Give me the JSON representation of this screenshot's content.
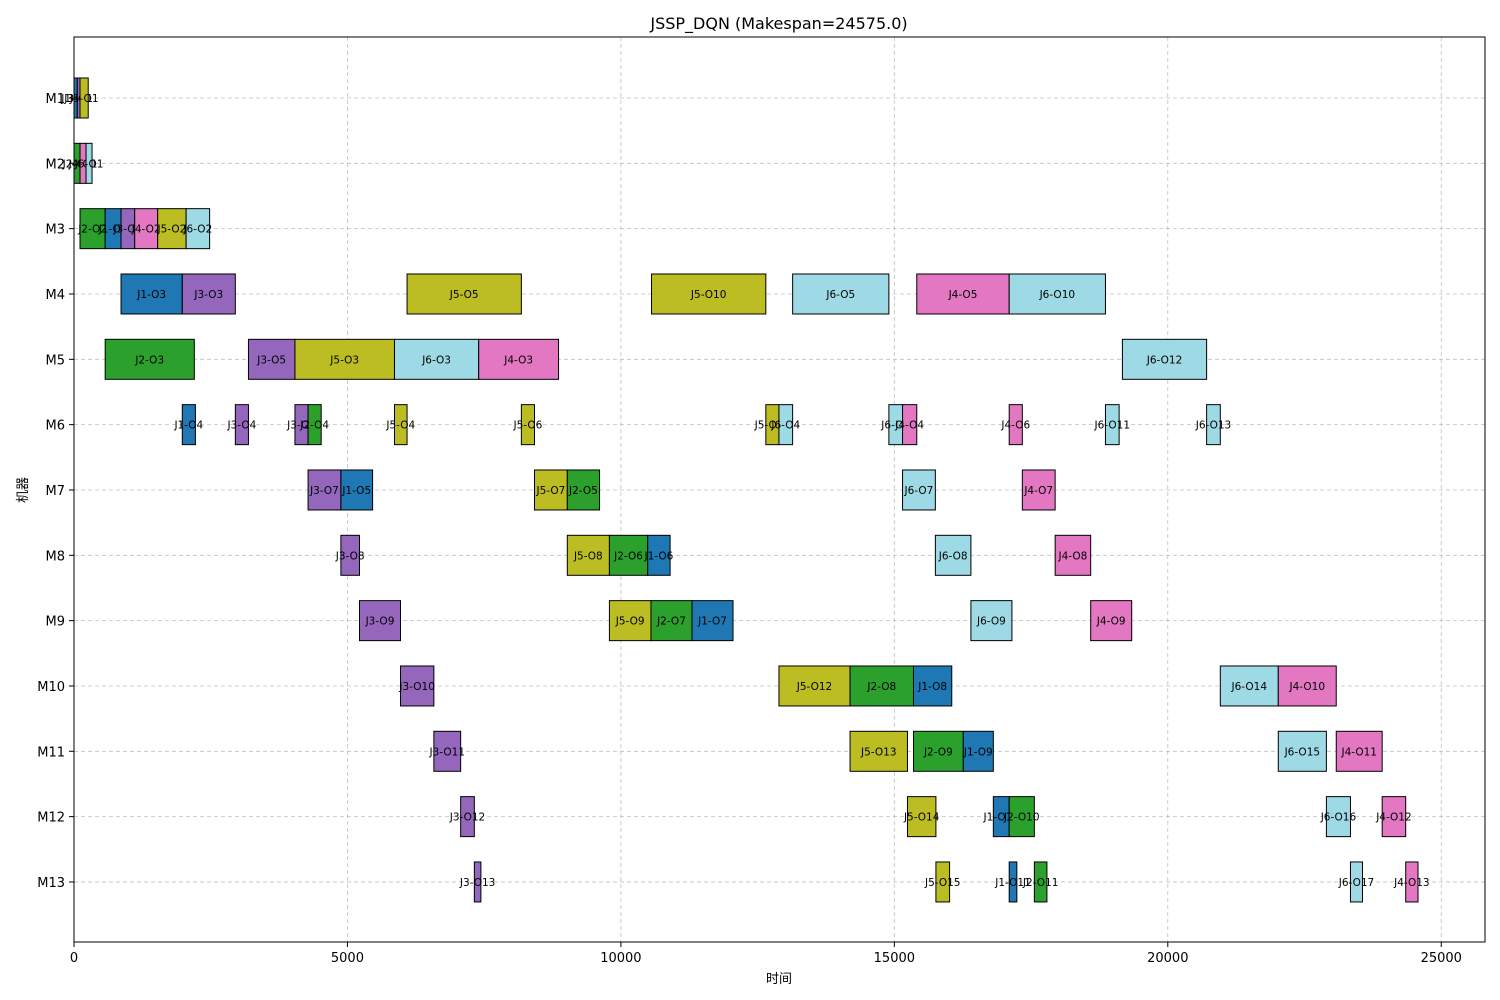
{
  "chart_data": {
    "type": "gantt",
    "title": "JSSP_DQN (Makespan=24575.0)",
    "xlabel": "时间",
    "ylabel": "机器",
    "xlim": [
      0,
      25800
    ],
    "xticks": [
      0,
      5000,
      10000,
      15000,
      20000,
      25000
    ],
    "grid": true,
    "machines": [
      "M1",
      "M2",
      "M3",
      "M4",
      "M5",
      "M6",
      "M7",
      "M8",
      "M9",
      "M10",
      "M11",
      "M12",
      "M13"
    ],
    "colors": {
      "J1": "#1f77b4",
      "J2": "#2ca02c",
      "J3": "#9467bd",
      "J4": "#e377c2",
      "J5": "#bcbd22",
      "J6": "#9edae5"
    },
    "tasks": [
      {
        "label": "J1-O1",
        "job": "J1",
        "machine": "M1",
        "start": 0,
        "end": 60
      },
      {
        "label": "J3-O1",
        "job": "J3",
        "machine": "M1",
        "start": 60,
        "end": 110
      },
      {
        "label": "J5-O1",
        "job": "J5",
        "machine": "M1",
        "start": 110,
        "end": 260
      },
      {
        "label": "J2-O1",
        "job": "J2",
        "machine": "M2",
        "start": 0,
        "end": 110
      },
      {
        "label": "J4-O1",
        "job": "J4",
        "machine": "M2",
        "start": 110,
        "end": 220
      },
      {
        "label": "J6-O1",
        "job": "J6",
        "machine": "M2",
        "start": 220,
        "end": 330
      },
      {
        "label": "J2-O2",
        "job": "J2",
        "machine": "M3",
        "start": 110,
        "end": 570
      },
      {
        "label": "J1-O2",
        "job": "J1",
        "machine": "M3",
        "start": 570,
        "end": 860
      },
      {
        "label": "J3-O2",
        "job": "J3",
        "machine": "M3",
        "start": 860,
        "end": 1110
      },
      {
        "label": "J4-O2",
        "job": "J4",
        "machine": "M3",
        "start": 1110,
        "end": 1530
      },
      {
        "label": "J5-O2",
        "job": "J5",
        "machine": "M3",
        "start": 1530,
        "end": 2050
      },
      {
        "label": "J6-O2",
        "job": "J6",
        "machine": "M3",
        "start": 2050,
        "end": 2480
      },
      {
        "label": "J1-O3",
        "job": "J1",
        "machine": "M4",
        "start": 860,
        "end": 1980
      },
      {
        "label": "J3-O3",
        "job": "J3",
        "machine": "M4",
        "start": 1980,
        "end": 2950
      },
      {
        "label": "J5-O5",
        "job": "J5",
        "machine": "M4",
        "start": 6090,
        "end": 8180
      },
      {
        "label": "J5-O10",
        "job": "J5",
        "machine": "M4",
        "start": 10560,
        "end": 12650
      },
      {
        "label": "J6-O5",
        "job": "J6",
        "machine": "M4",
        "start": 13140,
        "end": 14900
      },
      {
        "label": "J4-O5",
        "job": "J4",
        "machine": "M4",
        "start": 15410,
        "end": 17100
      },
      {
        "label": "J6-O10",
        "job": "J6",
        "machine": "M4",
        "start": 17100,
        "end": 18860
      },
      {
        "label": "J2-O3",
        "job": "J2",
        "machine": "M5",
        "start": 570,
        "end": 2200
      },
      {
        "label": "J3-O5",
        "job": "J3",
        "machine": "M5",
        "start": 3190,
        "end": 4040
      },
      {
        "label": "J5-O3",
        "job": "J5",
        "machine": "M5",
        "start": 4040,
        "end": 5860
      },
      {
        "label": "J6-O3",
        "job": "J6",
        "machine": "M5",
        "start": 5860,
        "end": 7400
      },
      {
        "label": "J4-O3",
        "job": "J4",
        "machine": "M5",
        "start": 7400,
        "end": 8860
      },
      {
        "label": "J6-O12",
        "job": "J6",
        "machine": "M5",
        "start": 19170,
        "end": 20710
      },
      {
        "label": "J1-O4",
        "job": "J1",
        "machine": "M6",
        "start": 1980,
        "end": 2220
      },
      {
        "label": "J3-O4",
        "job": "J3",
        "machine": "M6",
        "start": 2950,
        "end": 3190
      },
      {
        "label": "J3-O6",
        "job": "J3",
        "machine": "M6",
        "start": 4040,
        "end": 4280
      },
      {
        "label": "J2-O4",
        "job": "J2",
        "machine": "M6",
        "start": 4280,
        "end": 4520
      },
      {
        "label": "J5-O4",
        "job": "J5",
        "machine": "M6",
        "start": 5860,
        "end": 6090
      },
      {
        "label": "J5-O6",
        "job": "J5",
        "machine": "M6",
        "start": 8180,
        "end": 8420
      },
      {
        "label": "J5-O11",
        "job": "J5",
        "machine": "M6",
        "start": 12650,
        "end": 12890
      },
      {
        "label": "J6-O4",
        "job": "J6",
        "machine": "M6",
        "start": 12890,
        "end": 13140
      },
      {
        "label": "J6-O6",
        "job": "J6",
        "machine": "M6",
        "start": 14900,
        "end": 15150
      },
      {
        "label": "J4-O4",
        "job": "J4",
        "machine": "M6",
        "start": 15150,
        "end": 15410
      },
      {
        "label": "J4-O6",
        "job": "J4",
        "machine": "M6",
        "start": 17100,
        "end": 17340
      },
      {
        "label": "J6-O11",
        "job": "J6",
        "machine": "M6",
        "start": 18860,
        "end": 19110
      },
      {
        "label": "J6-O13",
        "job": "J6",
        "machine": "M6",
        "start": 20710,
        "end": 20960
      },
      {
        "label": "J3-O7",
        "job": "J3",
        "machine": "M7",
        "start": 4280,
        "end": 4880
      },
      {
        "label": "J1-O5",
        "job": "J1",
        "machine": "M7",
        "start": 4880,
        "end": 5460
      },
      {
        "label": "J5-O7",
        "job": "J5",
        "machine": "M7",
        "start": 8420,
        "end": 9020
      },
      {
        "label": "J2-O5",
        "job": "J2",
        "machine": "M7",
        "start": 9020,
        "end": 9610
      },
      {
        "label": "J6-O7",
        "job": "J6",
        "machine": "M7",
        "start": 15150,
        "end": 15750
      },
      {
        "label": "J4-O7",
        "job": "J4",
        "machine": "M7",
        "start": 17340,
        "end": 17940
      },
      {
        "label": "J3-O8",
        "job": "J3",
        "machine": "M8",
        "start": 4880,
        "end": 5220
      },
      {
        "label": "J5-O8",
        "job": "J5",
        "machine": "M8",
        "start": 9020,
        "end": 9790
      },
      {
        "label": "J2-O6",
        "job": "J2",
        "machine": "M8",
        "start": 9790,
        "end": 10490
      },
      {
        "label": "J1-O6",
        "job": "J1",
        "machine": "M8",
        "start": 10490,
        "end": 10900
      },
      {
        "label": "J6-O8",
        "job": "J6",
        "machine": "M8",
        "start": 15750,
        "end": 16400
      },
      {
        "label": "J4-O8",
        "job": "J4",
        "machine": "M8",
        "start": 17940,
        "end": 18590
      },
      {
        "label": "J3-O9",
        "job": "J3",
        "machine": "M9",
        "start": 5220,
        "end": 5970
      },
      {
        "label": "J5-O9",
        "job": "J5",
        "machine": "M9",
        "start": 9790,
        "end": 10550
      },
      {
        "label": "J2-O7",
        "job": "J2",
        "machine": "M9",
        "start": 10550,
        "end": 11300
      },
      {
        "label": "J1-O7",
        "job": "J1",
        "machine": "M9",
        "start": 11300,
        "end": 12050
      },
      {
        "label": "J6-O9",
        "job": "J6",
        "machine": "M9",
        "start": 16400,
        "end": 17150
      },
      {
        "label": "J4-O9",
        "job": "J4",
        "machine": "M9",
        "start": 18590,
        "end": 19340
      },
      {
        "label": "J3-O10",
        "job": "J3",
        "machine": "M10",
        "start": 5970,
        "end": 6580
      },
      {
        "label": "J5-O12",
        "job": "J5",
        "machine": "M10",
        "start": 12890,
        "end": 14190
      },
      {
        "label": "J2-O8",
        "job": "J2",
        "machine": "M10",
        "start": 14190,
        "end": 15350
      },
      {
        "label": "J1-O8",
        "job": "J1",
        "machine": "M10",
        "start": 15350,
        "end": 16050
      },
      {
        "label": "J6-O14",
        "job": "J6",
        "machine": "M10",
        "start": 20960,
        "end": 22020
      },
      {
        "label": "J4-O10",
        "job": "J4",
        "machine": "M10",
        "start": 22020,
        "end": 23080
      },
      {
        "label": "J3-O11",
        "job": "J3",
        "machine": "M11",
        "start": 6580,
        "end": 7070
      },
      {
        "label": "J5-O13",
        "job": "J5",
        "machine": "M11",
        "start": 14190,
        "end": 15240
      },
      {
        "label": "J2-O9",
        "job": "J2",
        "machine": "M11",
        "start": 15350,
        "end": 16260
      },
      {
        "label": "J1-O9",
        "job": "J1",
        "machine": "M11",
        "start": 16260,
        "end": 16810
      },
      {
        "label": "J6-O15",
        "job": "J6",
        "machine": "M11",
        "start": 22020,
        "end": 22900
      },
      {
        "label": "J4-O11",
        "job": "J4",
        "machine": "M11",
        "start": 23080,
        "end": 23920
      },
      {
        "label": "J3-O12",
        "job": "J3",
        "machine": "M12",
        "start": 7070,
        "end": 7320
      },
      {
        "label": "J5-O14",
        "job": "J5",
        "machine": "M12",
        "start": 15240,
        "end": 15760
      },
      {
        "label": "J1-O10",
        "job": "J1",
        "machine": "M12",
        "start": 16810,
        "end": 17100
      },
      {
        "label": "J2-O10",
        "job": "J2",
        "machine": "M12",
        "start": 17100,
        "end": 17560
      },
      {
        "label": "J6-O16",
        "job": "J6",
        "machine": "M12",
        "start": 22900,
        "end": 23340
      },
      {
        "label": "J4-O12",
        "job": "J4",
        "machine": "M12",
        "start": 23920,
        "end": 24350
      },
      {
        "label": "J3-O13",
        "job": "J3",
        "machine": "M13",
        "start": 7320,
        "end": 7440
      },
      {
        "label": "J5-O15",
        "job": "J5",
        "machine": "M13",
        "start": 15760,
        "end": 16010
      },
      {
        "label": "J1-O11",
        "job": "J1",
        "machine": "M13",
        "start": 17100,
        "end": 17240
      },
      {
        "label": "J2-O11",
        "job": "J2",
        "machine": "M13",
        "start": 17560,
        "end": 17790
      },
      {
        "label": "J6-O17",
        "job": "J6",
        "machine": "M13",
        "start": 23340,
        "end": 23560
      },
      {
        "label": "J4-O13",
        "job": "J4",
        "machine": "M13",
        "start": 24350,
        "end": 24575
      }
    ]
  }
}
